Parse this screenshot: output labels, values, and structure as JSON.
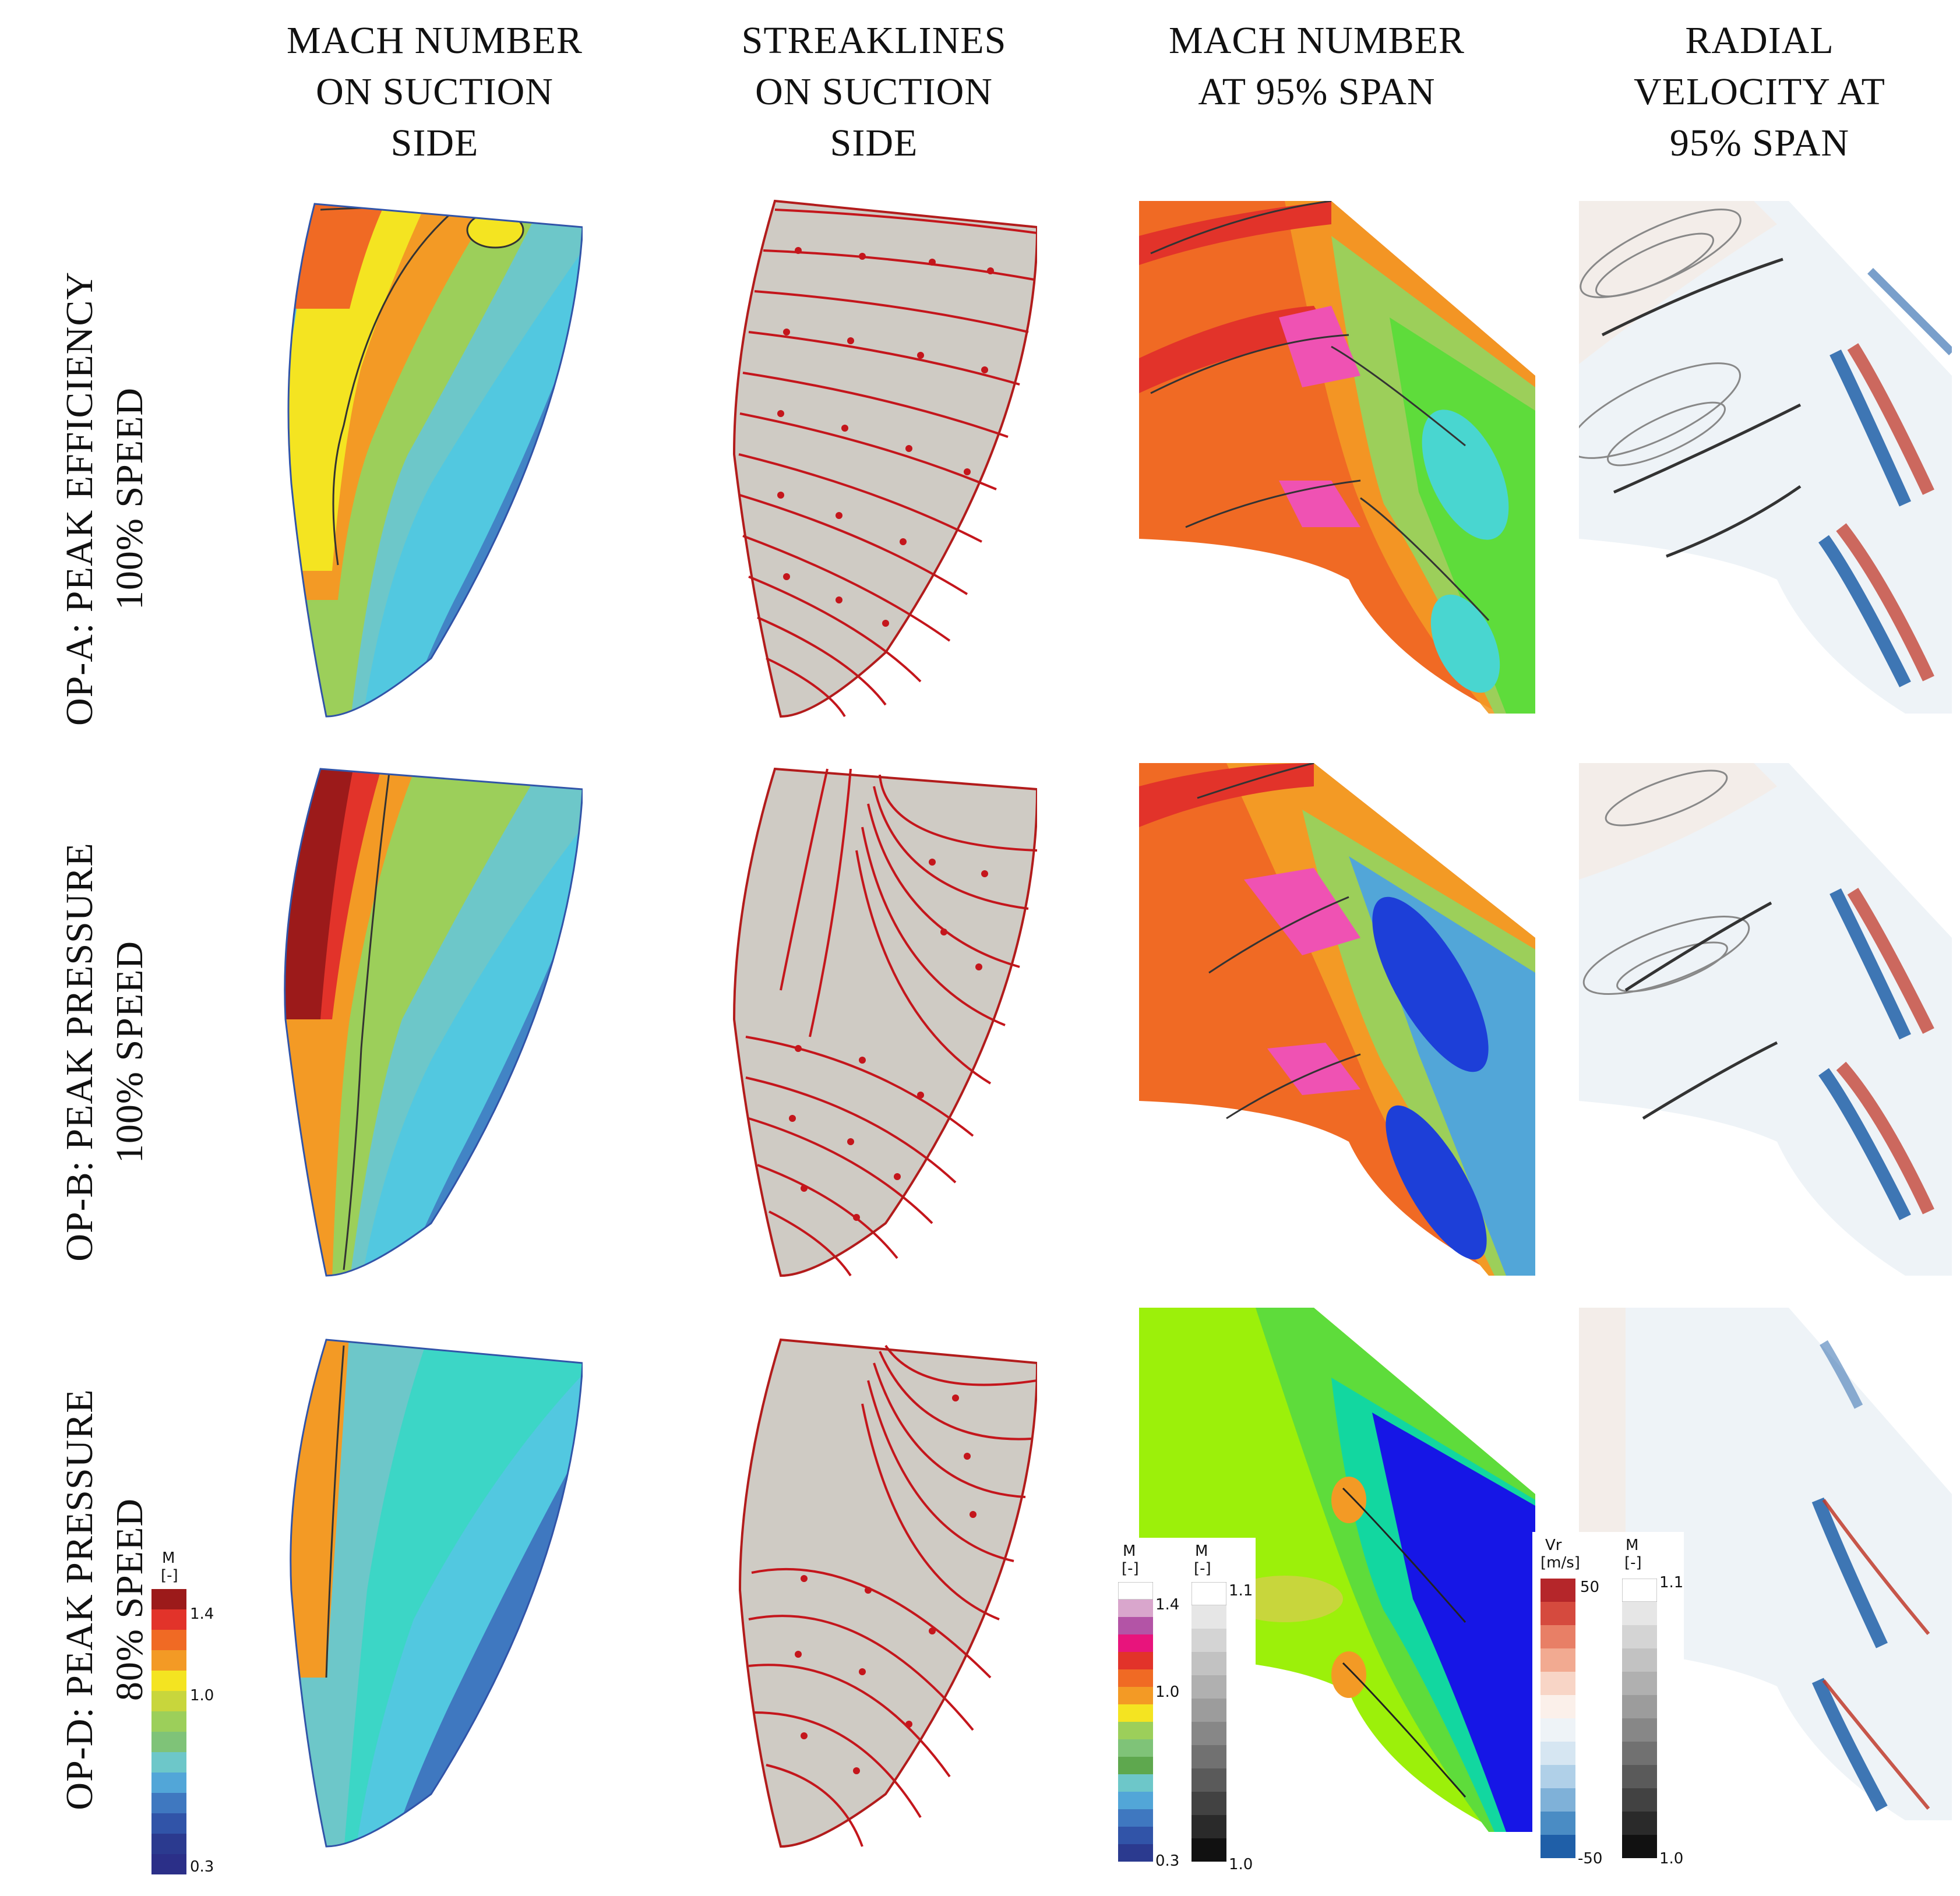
{
  "columns": [
    {
      "lines": [
        "MACH NUMBER",
        "ON SUCTION",
        "SIDE"
      ]
    },
    {
      "lines": [
        "STREAKLINES",
        "ON SUCTION",
        "SIDE"
      ]
    },
    {
      "lines": [
        "MACH NUMBER",
        "AT 95% SPAN"
      ]
    },
    {
      "lines": [
        "RADIAL",
        "VELOCITY AT",
        "95% SPAN"
      ]
    }
  ],
  "rows": [
    {
      "line1": "OP-A: PEAK EFFICIENCY",
      "line2": "100% SPEED"
    },
    {
      "line1": "OP-B: PEAK PRESSURE",
      "line2": "100% SPEED"
    },
    {
      "line1": "OP-D: PEAK PRESSURE",
      "line2": "80% SPEED"
    }
  ],
  "legends": {
    "mach_suction": {
      "title": "M",
      "unit": "[-]",
      "max": "1.4",
      "mid": "1.0",
      "min": "0.3"
    },
    "mach_span": {
      "title": "M",
      "unit": "[-]",
      "max": "1.4",
      "mid": "1.0",
      "min": "0.3"
    },
    "mach_gray": {
      "title": "M",
      "unit": "[-]",
      "max": "1.1",
      "min": "1.0"
    },
    "vr": {
      "title": "Vr",
      "unit": "[m/s]",
      "max": "50",
      "min": "-50"
    },
    "mach_gray2": {
      "title": "M",
      "unit": "[-]",
      "max": "1.1",
      "min": "1.0"
    }
  },
  "palette": {
    "mach": [
      "#2b3a8f",
      "#3154a8",
      "#3f78c0",
      "#52a6d8",
      "#6dc7c9",
      "#7fc378",
      "#9ccf5a",
      "#c8d63c",
      "#f4e421",
      "#f39a25",
      "#f06a24",
      "#e2332a",
      "#b7182b",
      "#9c1a50",
      "#d0338c",
      "#ef52b3",
      "#ffffff"
    ],
    "streak": "#c4161c",
    "blade_surface": "#cfcbc4",
    "vr_pos": "#c0392b",
    "vr_neg": "#1f5fa8"
  }
}
